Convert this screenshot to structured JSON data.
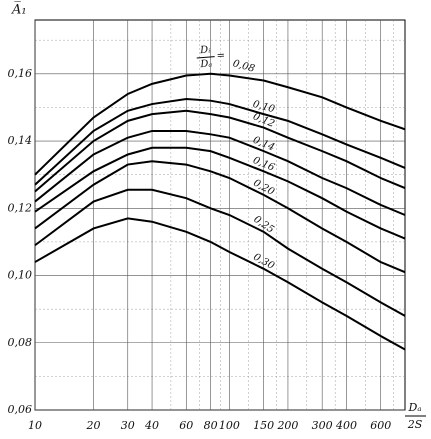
{
  "chart_data": {
    "type": "line",
    "y_label": "A̅₁",
    "x_label": {
      "numerator": "Dₐ",
      "denominator": "2S"
    },
    "annotation": {
      "numerator": "Dᵢ",
      "denominator": "Dₐ",
      "sign": "="
    },
    "log_x": true,
    "grid": true,
    "xlim": [
      10,
      800
    ],
    "ylim": [
      0.06,
      0.176
    ],
    "xticks": [
      10,
      20,
      30,
      40,
      60,
      80,
      100,
      150,
      200,
      300,
      400,
      600
    ],
    "x_minor_grid": [
      50,
      70,
      90,
      125,
      175,
      250,
      350,
      500,
      700
    ],
    "yticks": [
      {
        "value": 0.06,
        "label": "0,06"
      },
      {
        "value": 0.08,
        "label": "0,08"
      },
      {
        "value": 0.1,
        "label": "0,10"
      },
      {
        "value": 0.12,
        "label": "0,12"
      },
      {
        "value": 0.14,
        "label": "0,14"
      },
      {
        "value": 0.16,
        "label": "0,16"
      }
    ],
    "y_minor_grid": [
      0.07,
      0.09,
      0.11,
      0.13,
      0.15,
      0.17
    ],
    "x": [
      10,
      20,
      30,
      40,
      60,
      80,
      100,
      150,
      200,
      300,
      400,
      600,
      800
    ],
    "series": [
      {
        "name": "0,08",
        "color": "#000",
        "values": [
          0.13,
          0.147,
          0.154,
          0.157,
          0.1595,
          0.16,
          0.1595,
          0.158,
          0.156,
          0.153,
          0.15,
          0.146,
          0.1435
        ]
      },
      {
        "name": "0,10",
        "color": "#000",
        "values": [
          0.127,
          0.143,
          0.149,
          0.151,
          0.1525,
          0.152,
          0.151,
          0.148,
          0.146,
          0.142,
          0.139,
          0.135,
          0.132
        ]
      },
      {
        "name": "0,12",
        "color": "#000",
        "values": [
          0.125,
          0.14,
          0.146,
          0.148,
          0.149,
          0.148,
          0.147,
          0.144,
          0.141,
          0.137,
          0.134,
          0.129,
          0.126
        ]
      },
      {
        "name": "0,14",
        "color": "#000",
        "values": [
          0.122,
          0.136,
          0.141,
          0.143,
          0.143,
          0.142,
          0.141,
          0.137,
          0.134,
          0.129,
          0.126,
          0.121,
          0.118
        ]
      },
      {
        "name": "0,16",
        "color": "#000",
        "values": [
          0.119,
          0.131,
          0.136,
          0.138,
          0.138,
          0.137,
          0.135,
          0.131,
          0.128,
          0.123,
          0.119,
          0.114,
          0.111
        ]
      },
      {
        "name": "0,20",
        "color": "#000",
        "values": [
          0.114,
          0.127,
          0.133,
          0.134,
          0.133,
          0.131,
          0.129,
          0.124,
          0.12,
          0.114,
          0.11,
          0.104,
          0.101
        ]
      },
      {
        "name": "0,25",
        "color": "#000",
        "values": [
          0.109,
          0.122,
          0.1255,
          0.1255,
          0.123,
          0.12,
          0.118,
          0.113,
          0.108,
          0.102,
          0.098,
          0.092,
          0.088
        ]
      },
      {
        "name": "0,30",
        "color": "#000",
        "values": [
          0.104,
          0.114,
          0.117,
          0.116,
          0.113,
          0.11,
          0.107,
          0.102,
          0.098,
          0.092,
          0.088,
          0.082,
          0.078
        ]
      }
    ]
  }
}
